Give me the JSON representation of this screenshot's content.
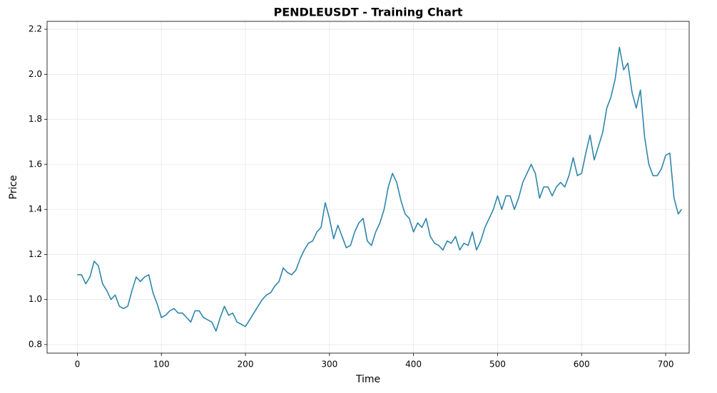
{
  "chart_data": {
    "type": "line",
    "title": "PENDLEUSDT - Training Chart",
    "x_label": "Time",
    "y_label": "Price",
    "x": [
      0,
      5,
      10,
      15,
      20,
      25,
      30,
      35,
      40,
      45,
      50,
      55,
      60,
      65,
      70,
      75,
      80,
      85,
      90,
      95,
      100,
      105,
      110,
      115,
      120,
      125,
      130,
      135,
      140,
      145,
      150,
      155,
      160,
      165,
      170,
      175,
      180,
      185,
      190,
      195,
      200,
      205,
      210,
      215,
      220,
      225,
      230,
      235,
      240,
      245,
      250,
      255,
      260,
      265,
      270,
      275,
      280,
      285,
      290,
      295,
      300,
      305,
      310,
      315,
      320,
      325,
      330,
      335,
      340,
      345,
      350,
      355,
      360,
      365,
      370,
      375,
      380,
      385,
      390,
      395,
      400,
      405,
      410,
      415,
      420,
      425,
      430,
      435,
      440,
      445,
      450,
      455,
      460,
      465,
      470,
      475,
      480,
      485,
      490,
      495,
      500,
      505,
      510,
      515,
      520,
      525,
      530,
      535,
      540,
      545,
      550,
      555,
      560,
      565,
      570,
      575,
      580,
      585,
      590,
      595,
      600,
      605,
      610,
      615,
      620,
      625,
      630,
      635,
      640,
      645,
      650,
      655,
      660,
      665,
      670,
      675,
      680,
      685,
      690,
      695,
      700,
      705,
      710,
      715,
      719
    ],
    "values": [
      1.11,
      1.11,
      1.07,
      1.1,
      1.17,
      1.15,
      1.07,
      1.04,
      1.0,
      1.02,
      0.97,
      0.96,
      0.97,
      1.04,
      1.1,
      1.08,
      1.1,
      1.11,
      1.03,
      0.98,
      0.92,
      0.93,
      0.95,
      0.96,
      0.94,
      0.94,
      0.92,
      0.9,
      0.95,
      0.95,
      0.92,
      0.91,
      0.9,
      0.86,
      0.92,
      0.97,
      0.93,
      0.94,
      0.9,
      0.89,
      0.88,
      0.91,
      0.94,
      0.97,
      1.0,
      1.02,
      1.03,
      1.06,
      1.08,
      1.14,
      1.12,
      1.11,
      1.13,
      1.18,
      1.22,
      1.25,
      1.26,
      1.3,
      1.32,
      1.43,
      1.36,
      1.27,
      1.33,
      1.28,
      1.23,
      1.24,
      1.3,
      1.34,
      1.36,
      1.26,
      1.24,
      1.3,
      1.34,
      1.4,
      1.5,
      1.56,
      1.52,
      1.44,
      1.38,
      1.36,
      1.3,
      1.34,
      1.32,
      1.36,
      1.28,
      1.25,
      1.24,
      1.22,
      1.26,
      1.25,
      1.28,
      1.22,
      1.25,
      1.24,
      1.3,
      1.22,
      1.26,
      1.32,
      1.36,
      1.4,
      1.46,
      1.4,
      1.46,
      1.46,
      1.4,
      1.45,
      1.52,
      1.56,
      1.6,
      1.56,
      1.45,
      1.5,
      1.5,
      1.46,
      1.5,
      1.52,
      1.5,
      1.55,
      1.63,
      1.55,
      1.56,
      1.65,
      1.73,
      1.62,
      1.68,
      1.74,
      1.85,
      1.9,
      1.98,
      2.12,
      2.02,
      2.05,
      1.92,
      1.85,
      1.93,
      1.72,
      1.6,
      1.55,
      1.55,
      1.58,
      1.64,
      1.65,
      1.45,
      1.38,
      1.4
    ],
    "color": "#2e86ab",
    "xlim": [
      -36,
      728
    ],
    "ylim": [
      0.762,
      2.235
    ],
    "xticks": [
      0,
      100,
      200,
      300,
      400,
      500,
      600,
      700
    ],
    "yticks": [
      0.8,
      {
        "value": 1.0,
        "label": "1.0"
      },
      1.2,
      1.4,
      1.6,
      1.8,
      {
        "value": 2.0,
        "label": "2.0"
      },
      2.2
    ],
    "grid": true
  }
}
